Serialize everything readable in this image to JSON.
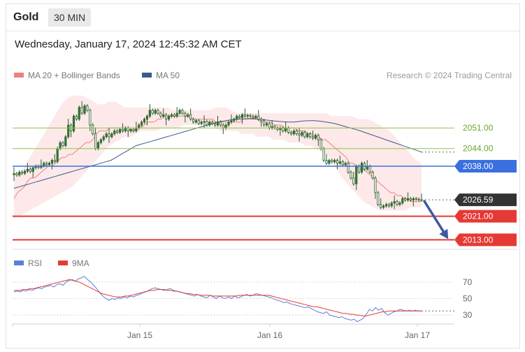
{
  "header": {
    "title": "Gold",
    "timeframe": "30 MIN"
  },
  "timestamp": "Wednesday, January 17, 2024 12:45:32 AM CET",
  "legend": {
    "ma20": "MA 20 + Bollinger Bands",
    "ma50": "MA 50",
    "rsi": "RSI",
    "rsi_ma": "9MA"
  },
  "copyright": "Research © 2024 Trading Central",
  "colors": {
    "ma20": "#f08080",
    "ma50": "#3a5a8c",
    "band": "#fde3e3",
    "candle": "#2e7d32",
    "resistance": "#8bc34a",
    "pivot": "#3b6fe0",
    "support": "#e53935",
    "rsi": "#5b7fd6",
    "rsi_ma": "#e53935",
    "current": "#333333"
  },
  "chart_data": [
    {
      "type": "candlestick",
      "ylim": [
        2010,
        2066
      ],
      "x_tick_labels": [
        "Jan 15",
        "Jan 16",
        "Jan 17"
      ],
      "levels": [
        {
          "label": "2051.00",
          "value": 2051.0,
          "kind": "resistance"
        },
        {
          "label": "2044.00",
          "value": 2044.0,
          "kind": "resistance"
        },
        {
          "label": "2038.00",
          "value": 2038.0,
          "kind": "pivot"
        },
        {
          "label": "2021.00",
          "value": 2021.0,
          "kind": "support"
        },
        {
          "label": "2013.00",
          "value": 2013.0,
          "kind": "support"
        }
      ],
      "current_price": {
        "label": "2026.59",
        "value": 2026.59
      },
      "closes": [
        2035.5,
        2035,
        2036,
        2035.6,
        2036.3,
        2037,
        2036.2,
        2037.5,
        2038,
        2037.6,
        2038.2,
        2039,
        2038.5,
        2039,
        2040,
        2039.6,
        2044,
        2046,
        2045,
        2048,
        2052,
        2050,
        2055,
        2054,
        2058,
        2056,
        2058.5,
        2057,
        2052,
        2049,
        2044,
        2046,
        2047,
        2048,
        2049,
        2048,
        2049,
        2050,
        2049.5,
        2050.5,
        2050,
        2051,
        2050,
        2050.5,
        2050,
        2051,
        2052,
        2053,
        2054,
        2055,
        2057,
        2056,
        2057,
        2056,
        2055,
        2055.5,
        2054,
        2055,
        2055.5,
        2055,
        2056,
        2057,
        2056,
        2055,
        2055.5,
        2054,
        2053,
        2053.5,
        2052.5,
        2053,
        2053.2,
        2052,
        2053,
        2052.5,
        2052,
        2053,
        2052,
        2051,
        2052,
        2053,
        2053.5,
        2054,
        2055,
        2054.5,
        2055.5,
        2055,
        2055.3,
        2055,
        2054.5,
        2055,
        2054,
        2053.5,
        2052,
        2052.5,
        2051,
        2051.5,
        2051,
        2050.5,
        2051,
        2050,
        2051,
        2049.5,
        2049,
        2050,
        2049,
        2048.5,
        2049.5,
        2048,
        2049,
        2048,
        2047.5,
        2048.5,
        2047,
        2044,
        2040,
        2039,
        2040,
        2039.5,
        2040,
        2039,
        2039.5,
        2038.5,
        2039,
        2036,
        2034,
        2032,
        2038,
        2036,
        2039,
        2037,
        2038,
        2036,
        2034,
        2029,
        2025,
        2024,
        2024.5,
        2025,
        2024.5,
        2025.5,
        2026,
        2025,
        2025.5,
        2027,
        2026.5,
        2027,
        2026.5,
        2027,
        2026.8,
        2026.6,
        2026.59
      ],
      "series": [
        {
          "name": "MA 20 + Bollinger Bands",
          "values": [
            2027,
            2029,
            2030,
            2031,
            2033,
            2034,
            2034,
            2035,
            2036,
            2037,
            2038,
            2038,
            2039,
            2040,
            2041,
            2041,
            2042,
            2042,
            2043,
            2044,
            2045,
            2046,
            2046,
            2047,
            2049,
            2050,
            2050,
            2050,
            2051,
            2051,
            2051,
            2051,
            2051,
            2051,
            2050,
            2050,
            2051,
            2051,
            2052,
            2053,
            2053,
            2053,
            2054,
            2054,
            2055,
            2055,
            2055,
            2055,
            2055,
            2055,
            2055,
            2055,
            2054,
            2054,
            2054,
            2054,
            2054,
            2054,
            2054,
            2053,
            2053,
            2053,
            2053,
            2053,
            2053,
            2053,
            2053,
            2054,
            2054,
            2054,
            2054,
            2054,
            2053,
            2053,
            2053,
            2053,
            2052,
            2052,
            2052,
            2051,
            2051,
            2051,
            2051,
            2050,
            2050,
            2050,
            2049,
            2049,
            2048,
            2048,
            2047,
            2047,
            2046,
            2045,
            2044,
            2043,
            2042,
            2041,
            2039,
            2039,
            2038,
            2037,
            2037,
            2036,
            2035,
            2034,
            2033,
            2032,
            2031,
            2030,
            2029,
            2029,
            2028,
            2028,
            2027,
            2027,
            2026,
            2026,
            2026,
            2026
          ]
        },
        {
          "name": "MA 50",
          "values": [
            2030.5,
            2031,
            2031.5,
            2032,
            2032.5,
            2033,
            2033.5,
            2034,
            2034.5,
            2035,
            2035.5,
            2036,
            2036.5,
            2037,
            2037.5,
            2038,
            2038.5,
            2039,
            2039.5,
            2040,
            2041,
            2042,
            2043,
            2044,
            2045,
            2045.5,
            2046,
            2046.5,
            2047,
            2047.5,
            2048,
            2048.5,
            2049,
            2049.5,
            2050,
            2050.5,
            2051,
            2051.5,
            2052,
            2052.5,
            2053,
            2053.3,
            2053.6,
            2053.9,
            2054,
            2054.1,
            2054.2,
            2054.2,
            2054,
            2053.8,
            2053.6,
            2053.4,
            2053.2,
            2053.1,
            2053,
            2053,
            2053.2,
            2053.4,
            2053.5,
            2053.5,
            2053.3,
            2053.1,
            2052.8,
            2052.5,
            2052,
            2051.5,
            2051,
            2050.5,
            2050,
            2049.4,
            2048.8,
            2048.2,
            2047.6,
            2047,
            2046.4,
            2045.8,
            2045.2,
            2044.6,
            2044,
            2043.4,
            2042.8
          ]
        },
        {
          "name": "Upper Bollinger Band",
          "values": [
            2034,
            2036,
            2038,
            2041,
            2044,
            2047,
            2050,
            2053,
            2056,
            2059,
            2061,
            2062,
            2062,
            2062,
            2061,
            2060,
            2059,
            2059,
            2060,
            2060,
            2059,
            2058,
            2058,
            2058,
            2058,
            2058,
            2058,
            2058,
            2058,
            2058,
            2057,
            2057,
            2057,
            2057,
            2057,
            2057,
            2057,
            2057,
            2058,
            2058,
            2058,
            2057,
            2056,
            2056,
            2056,
            2056,
            2056,
            2056,
            2056,
            2056,
            2056,
            2056,
            2056,
            2056,
            2056,
            2056,
            2056,
            2056,
            2056,
            2056,
            2055,
            2055,
            2055,
            2055,
            2055,
            2054,
            2054,
            2054,
            2053,
            2052,
            2051,
            2050,
            2048,
            2046,
            2044,
            2042,
            2040,
            2039
          ]
        },
        {
          "name": "Lower Bollinger Band",
          "values": [
            2020,
            2021,
            2022,
            2023,
            2024,
            2025,
            2026,
            2027,
            2028,
            2029,
            2030,
            2031,
            2033,
            2035,
            2037,
            2039,
            2041,
            2043,
            2045,
            2046,
            2047,
            2048,
            2048,
            2049,
            2050,
            2050,
            2050,
            2050,
            2051,
            2051,
            2051,
            2051,
            2052,
            2052,
            2052,
            2052,
            2052,
            2052,
            2051,
            2050,
            2050,
            2050,
            2050,
            2049,
            2049,
            2049,
            2048,
            2048,
            2048,
            2047,
            2047,
            2047,
            2046,
            2046,
            2046,
            2045,
            2045,
            2044,
            2043,
            2042,
            2040,
            2037,
            2034,
            2032,
            2030,
            2028,
            2026,
            2025,
            2024,
            2023,
            2023,
            2023,
            2023,
            2023,
            2023,
            2024,
            2024,
            2024
          ]
        }
      ],
      "forecast_arrow": {
        "from": 2026.59,
        "to": 2013.0
      }
    },
    {
      "type": "line",
      "ylim": [
        20,
        80
      ],
      "y_ticks": [
        {
          "label": "70",
          "value": 70
        },
        {
          "label": "50",
          "value": 50
        },
        {
          "label": "30",
          "value": 30
        }
      ],
      "series": [
        {
          "name": "RSI",
          "values": [
            58,
            59,
            58,
            60,
            59,
            61,
            60,
            62,
            63,
            62,
            64,
            65,
            66,
            64,
            67,
            68,
            66,
            70,
            72,
            73,
            71,
            74,
            75,
            77,
            73,
            70,
            66,
            62,
            57,
            53,
            50,
            48,
            50,
            49,
            51,
            50,
            52,
            51,
            53,
            52,
            54,
            55,
            57,
            58,
            60,
            62,
            63,
            62,
            61,
            60,
            61,
            62,
            60,
            59,
            58,
            57,
            56,
            55,
            54,
            53,
            55,
            53,
            52,
            51,
            54,
            52,
            50,
            53,
            51,
            50,
            52,
            50,
            53,
            51,
            52,
            54,
            55,
            53,
            54,
            56,
            55,
            54,
            53,
            52,
            51,
            49,
            48,
            47,
            45,
            46,
            44,
            43,
            42,
            41,
            40,
            39,
            40,
            38,
            36,
            34,
            33,
            32,
            34,
            30,
            29,
            28,
            27,
            28,
            26,
            25,
            24,
            25,
            22,
            24,
            26,
            31,
            37,
            35,
            39,
            36,
            38,
            33,
            30,
            32,
            34,
            35,
            37,
            36,
            35,
            36,
            35,
            36,
            35,
            35
          ]
        },
        {
          "name": "9MA",
          "values": [
            60,
            60,
            60,
            61,
            61,
            62,
            62,
            63,
            64,
            65,
            66,
            67,
            68,
            69,
            70,
            71,
            72,
            73,
            72,
            71,
            70,
            68,
            66,
            64,
            62,
            60,
            58,
            56,
            55,
            54,
            53,
            52,
            52,
            52,
            53,
            53,
            54,
            55,
            56,
            57,
            58,
            59,
            60,
            60,
            61,
            61,
            61,
            60,
            60,
            59,
            59,
            58,
            57,
            56,
            56,
            55,
            55,
            54,
            54,
            54,
            54,
            53,
            53,
            53,
            53,
            53,
            53,
            53,
            53,
            54,
            54,
            54,
            54,
            54,
            54,
            54,
            54,
            54,
            54,
            53,
            52,
            51,
            50,
            49,
            48,
            47,
            46,
            45,
            44,
            43,
            42,
            41,
            40,
            40,
            39,
            38,
            37,
            36,
            35,
            34,
            33,
            32,
            32,
            31,
            31,
            30,
            30,
            29,
            29,
            30,
            31,
            32,
            33,
            34,
            34,
            35,
            35,
            35,
            35,
            35,
            35,
            35,
            35,
            35,
            35,
            35
          ]
        }
      ]
    }
  ]
}
